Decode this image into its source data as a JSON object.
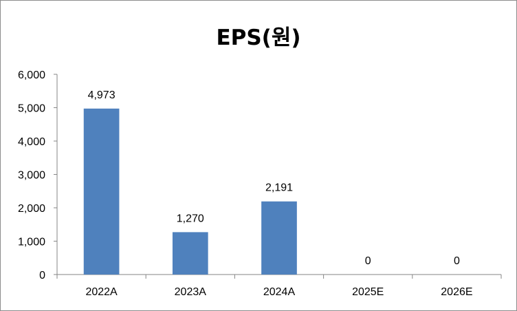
{
  "chart_data": {
    "type": "bar",
    "title": "EPS(원)",
    "categories": [
      "2022A",
      "2023A",
      "2024A",
      "2025E",
      "2026E"
    ],
    "values": [
      4973,
      1270,
      2191,
      0,
      0
    ],
    "data_labels": [
      "4,973",
      "1,270",
      "2,191",
      "0",
      "0"
    ],
    "y_ticks": [
      "0",
      "1,000",
      "2,000",
      "3,000",
      "4,000",
      "5,000",
      "6,000"
    ],
    "ylim": [
      0,
      6000
    ],
    "xlabel": "",
    "ylabel": "",
    "grid": false,
    "bar_color": "#4f81bd"
  }
}
